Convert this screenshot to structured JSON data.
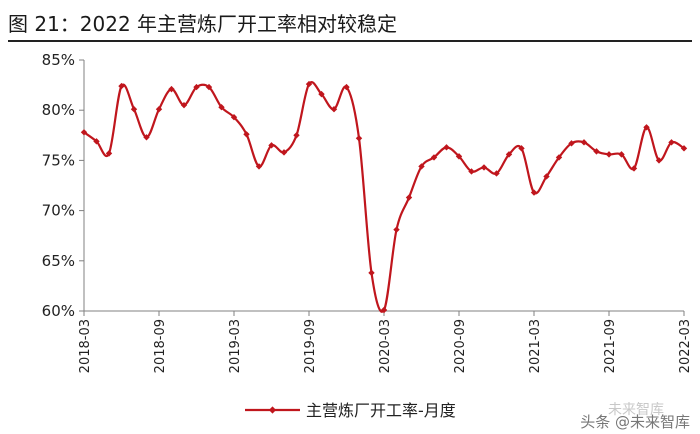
{
  "page": {
    "title": "图 21：2022 年主营炼厂开工率相对较稳定",
    "watermark": "头条 @未来智库",
    "watermark_ghost": "未来智库"
  },
  "colors": {
    "series": "#c0161d",
    "axis": "#808080",
    "text": "#222222"
  },
  "chart_data": {
    "type": "line",
    "title": "图 21：2022 年主营炼厂开工率相对较稳定",
    "xlabel": "",
    "ylabel": "",
    "ylim": [
      60,
      85
    ],
    "y_ticks": [
      "60%",
      "65%",
      "70%",
      "75%",
      "80%",
      "85%"
    ],
    "x_tick_labels": [
      "2018-03",
      "2018-09",
      "2019-03",
      "2019-09",
      "2020-03",
      "2020-09",
      "2021-03",
      "2021-09",
      "2022-03"
    ],
    "legend": {
      "placement": "bottom-center",
      "entries": [
        "主营炼厂开工率-月度"
      ]
    },
    "grid": false,
    "series": [
      {
        "name": "主营炼厂开工率-月度",
        "x": [
          "2018-03",
          "2018-04",
          "2018-05",
          "2018-06",
          "2018-07",
          "2018-08",
          "2018-09",
          "2018-10",
          "2018-11",
          "2018-12",
          "2019-01",
          "2019-02",
          "2019-03",
          "2019-04",
          "2019-05",
          "2019-06",
          "2019-07",
          "2019-08",
          "2019-09",
          "2019-10",
          "2019-11",
          "2019-12",
          "2020-01",
          "2020-02",
          "2020-03",
          "2020-04",
          "2020-05",
          "2020-06",
          "2020-07",
          "2020-08",
          "2020-09",
          "2020-10",
          "2020-11",
          "2020-12",
          "2021-01",
          "2021-02",
          "2021-03",
          "2021-04",
          "2021-05",
          "2021-06",
          "2021-07",
          "2021-08",
          "2021-09",
          "2021-10",
          "2021-11",
          "2021-12",
          "2022-01",
          "2022-02",
          "2022-03"
        ],
        "values": [
          77.8,
          76.9,
          75.7,
          82.4,
          80.1,
          77.3,
          80.1,
          82.1,
          80.5,
          82.3,
          82.3,
          80.3,
          79.3,
          77.6,
          74.4,
          76.5,
          75.8,
          77.5,
          82.6,
          81.6,
          80.1,
          82.3,
          77.2,
          63.8,
          60.1,
          68.1,
          71.3,
          74.4,
          75.3,
          76.3,
          75.4,
          73.9,
          74.3,
          73.7,
          75.6,
          76.2,
          71.8,
          73.4,
          75.3,
          76.7,
          76.8,
          75.9,
          75.6,
          75.6,
          74.2,
          78.3,
          75.0,
          76.8,
          76.2
        ]
      }
    ]
  }
}
